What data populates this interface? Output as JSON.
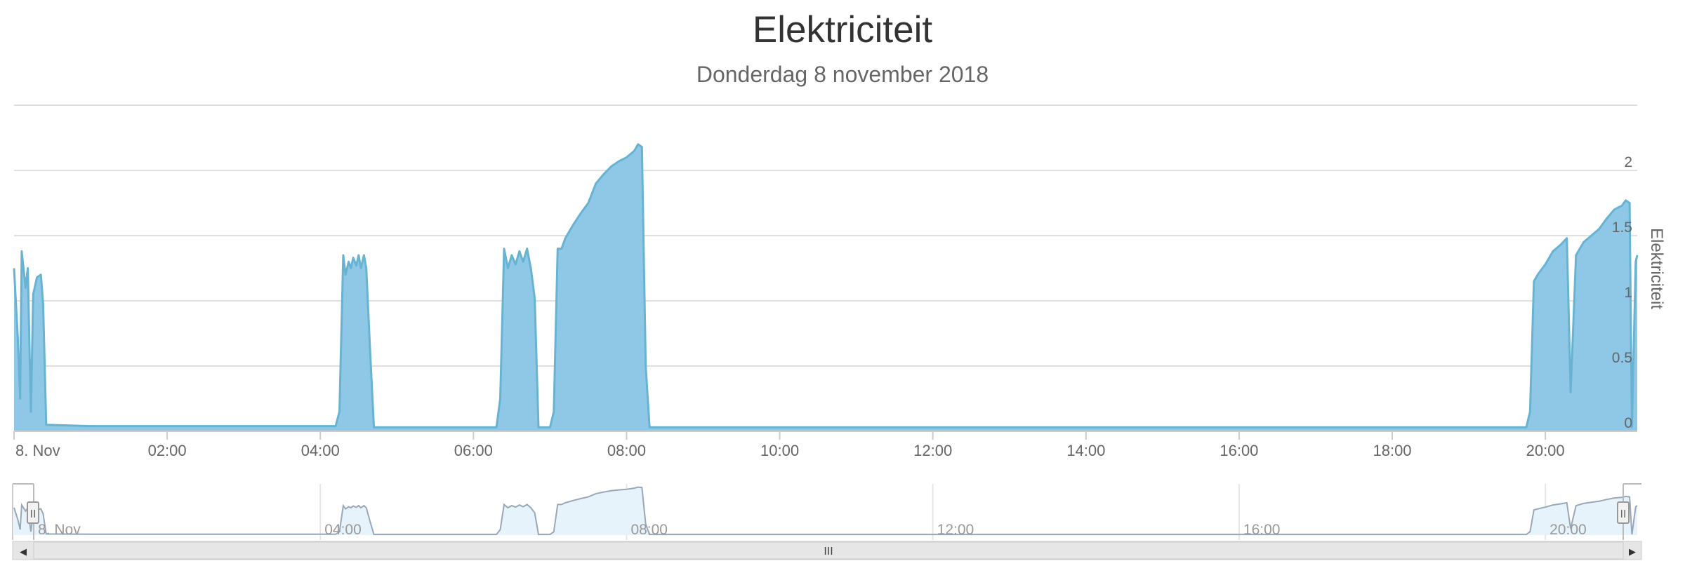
{
  "chart_data": {
    "type": "area",
    "title": "Elektriciteit",
    "subtitle": "Donderdag 8 november 2018",
    "ylabel": "Elektriciteit",
    "xlabel": "",
    "x_unit": "hours",
    "xlim": [
      0,
      21.2
    ],
    "ylim": [
      0,
      2.5
    ],
    "x_ticks": [
      {
        "x": 0,
        "label": "8. Nov"
      },
      {
        "x": 2,
        "label": "02:00"
      },
      {
        "x": 4,
        "label": "04:00"
      },
      {
        "x": 6,
        "label": "06:00"
      },
      {
        "x": 8,
        "label": "08:00"
      },
      {
        "x": 10,
        "label": "10:00"
      },
      {
        "x": 12,
        "label": "12:00"
      },
      {
        "x": 14,
        "label": "14:00"
      },
      {
        "x": 16,
        "label": "16:00"
      },
      {
        "x": 18,
        "label": "18:00"
      },
      {
        "x": 20,
        "label": "20:00"
      }
    ],
    "y_ticks": [
      {
        "y": 0,
        "label": "0"
      },
      {
        "y": 0.5,
        "label": "0.5"
      },
      {
        "y": 1,
        "label": "1"
      },
      {
        "y": 1.5,
        "label": "1.5"
      },
      {
        "y": 2,
        "label": "2"
      }
    ],
    "navigator_ticks": [
      {
        "x": 0,
        "label": "8. Nov"
      },
      {
        "x": 4,
        "label": "04:00"
      },
      {
        "x": 8,
        "label": "08:00"
      },
      {
        "x": 12,
        "label": "12:00"
      },
      {
        "x": 16,
        "label": "16:00"
      },
      {
        "x": 20,
        "label": "20:00"
      }
    ],
    "grid": true,
    "legend": "none",
    "colors": {
      "fill": "#8fc8e6",
      "line": "#68b3d2",
      "grid": "#e0e0e0",
      "navigator_fill": "#e6f3fb",
      "navigator_line": "#99a8b8"
    },
    "series": [
      {
        "points": [
          [
            0.0,
            1.25
          ],
          [
            0.05,
            0.7
          ],
          [
            0.08,
            0.25
          ],
          [
            0.1,
            1.38
          ],
          [
            0.15,
            1.1
          ],
          [
            0.18,
            1.25
          ],
          [
            0.22,
            0.15
          ],
          [
            0.25,
            1.05
          ],
          [
            0.3,
            1.18
          ],
          [
            0.35,
            1.2
          ],
          [
            0.38,
            0.98
          ],
          [
            0.42,
            0.05
          ],
          [
            1.0,
            0.04
          ],
          [
            2.0,
            0.04
          ],
          [
            3.0,
            0.04
          ],
          [
            4.2,
            0.04
          ],
          [
            4.25,
            0.15
          ],
          [
            4.3,
            1.35
          ],
          [
            4.33,
            1.2
          ],
          [
            4.37,
            1.3
          ],
          [
            4.4,
            1.25
          ],
          [
            4.43,
            1.33
          ],
          [
            4.47,
            1.27
          ],
          [
            4.5,
            1.35
          ],
          [
            4.53,
            1.25
          ],
          [
            4.57,
            1.35
          ],
          [
            4.6,
            1.25
          ],
          [
            4.65,
            0.62
          ],
          [
            4.7,
            0.03
          ],
          [
            5.5,
            0.03
          ],
          [
            6.3,
            0.03
          ],
          [
            6.35,
            0.25
          ],
          [
            6.4,
            1.4
          ],
          [
            6.45,
            1.25
          ],
          [
            6.5,
            1.35
          ],
          [
            6.55,
            1.28
          ],
          [
            6.6,
            1.38
          ],
          [
            6.65,
            1.3
          ],
          [
            6.7,
            1.4
          ],
          [
            6.75,
            1.25
          ],
          [
            6.8,
            1.02
          ],
          [
            6.85,
            0.03
          ],
          [
            7.0,
            0.03
          ],
          [
            7.05,
            0.15
          ],
          [
            7.1,
            1.4
          ],
          [
            7.15,
            1.4
          ],
          [
            7.2,
            1.48
          ],
          [
            7.3,
            1.58
          ],
          [
            7.4,
            1.67
          ],
          [
            7.5,
            1.75
          ],
          [
            7.6,
            1.9
          ],
          [
            7.7,
            1.97
          ],
          [
            7.8,
            2.03
          ],
          [
            7.9,
            2.07
          ],
          [
            8.0,
            2.1
          ],
          [
            8.1,
            2.15
          ],
          [
            8.15,
            2.2
          ],
          [
            8.2,
            2.18
          ],
          [
            8.25,
            0.5
          ],
          [
            8.3,
            0.03
          ],
          [
            10.0,
            0.03
          ],
          [
            12.0,
            0.03
          ],
          [
            14.0,
            0.03
          ],
          [
            16.0,
            0.03
          ],
          [
            18.0,
            0.03
          ],
          [
            19.75,
            0.03
          ],
          [
            19.8,
            0.15
          ],
          [
            19.85,
            1.15
          ],
          [
            19.9,
            1.2
          ],
          [
            20.0,
            1.28
          ],
          [
            20.1,
            1.38
          ],
          [
            20.2,
            1.43
          ],
          [
            20.28,
            1.48
          ],
          [
            20.33,
            0.3
          ],
          [
            20.4,
            1.35
          ],
          [
            20.5,
            1.45
          ],
          [
            20.6,
            1.5
          ],
          [
            20.7,
            1.55
          ],
          [
            20.8,
            1.63
          ],
          [
            20.9,
            1.7
          ],
          [
            21.0,
            1.73
          ],
          [
            21.05,
            1.77
          ],
          [
            21.1,
            1.75
          ],
          [
            21.13,
            0.03
          ],
          [
            21.18,
            1.3
          ],
          [
            21.2,
            1.35
          ]
        ]
      }
    ]
  },
  "navigator": {
    "scrollbar_grip": "III",
    "left_arrow": "◀",
    "right_arrow": "▶",
    "handle_glyph": "II"
  }
}
